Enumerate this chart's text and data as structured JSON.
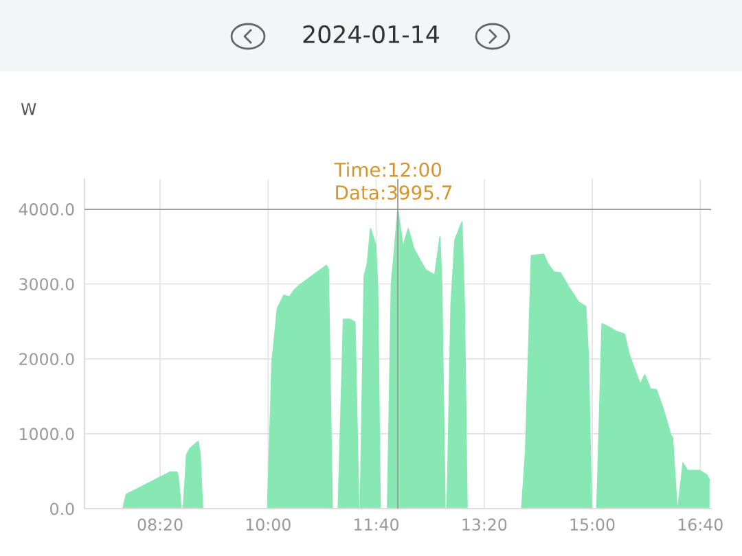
{
  "chart_data": {
    "type": "area",
    "title": "2024-01-14",
    "ylabel": "W",
    "annotations": [
      {
        "text": "Time:12:00\nData:3995.7",
        "x": 12.0,
        "y": 3995.7
      }
    ],
    "ref_lines": [
      {
        "axis": "x",
        "value": 12.0,
        "color": "#999999"
      },
      {
        "axis": "y",
        "value": 3995.7,
        "color": "#999999"
      }
    ],
    "series": [
      {
        "color": "#88e8b4",
        "x": [
          7.17,
          7.76,
          7.81,
          8.49,
          8.59,
          8.61,
          8.66,
          8.69,
          8.74,
          8.8,
          8.92,
          8.95,
          8.99,
          9.99,
          10.06,
          10.08,
          10.14,
          10.24,
          10.33,
          10.4,
          10.49,
          10.66,
          10.9,
          10.93,
          10.99,
          11.08,
          11.16,
          11.26,
          11.34,
          11.4,
          11.42,
          11.48,
          11.53,
          11.58,
          11.66,
          11.69,
          11.73,
          11.84,
          11.9,
          11.93,
          12.0,
          12.08,
          12.16,
          12.25,
          12.35,
          12.43,
          12.57,
          12.65,
          12.68,
          12.73,
          12.76,
          12.82,
          12.88,
          12.99,
          13.03,
          13.07,
          13.91,
          13.97,
          14.06,
          14.25,
          14.31,
          14.41,
          14.51,
          14.63,
          14.7,
          14.79,
          14.9,
          14.94,
          14.99,
          15.07,
          15.15,
          15.25,
          15.37,
          15.5,
          15.57,
          15.74,
          15.81,
          15.9,
          15.99,
          16.1,
          16.21,
          16.24,
          16.31,
          16.32,
          16.4,
          16.47,
          16.66,
          16.77,
          16.81
        ],
        "values": [
          0,
          0,
          190,
          490,
          490,
          440,
          0,
          0,
          720,
          810,
          900,
          740,
          0,
          0,
          2000,
          2140,
          2670,
          2850,
          2830,
          2920,
          2990,
          3100,
          3250,
          3190,
          0,
          0,
          2530,
          2530,
          2490,
          0,
          0,
          3100,
          3280,
          3740,
          3520,
          2970,
          0,
          0,
          3010,
          3280,
          3995.7,
          3500,
          3740,
          3470,
          3310,
          3190,
          3120,
          3630,
          2970,
          0,
          0,
          2730,
          3590,
          3830,
          2670,
          0,
          0,
          770,
          3380,
          3400,
          3280,
          3160,
          3150,
          2970,
          2880,
          2760,
          2700,
          2060,
          0,
          0,
          2470,
          2430,
          2370,
          2330,
          2060,
          1660,
          1790,
          1600,
          1590,
          1320,
          990,
          950,
          0,
          0,
          610,
          510,
          510,
          450,
          380
        ]
      }
    ],
    "xlim": [
      7.1667,
      16.8333
    ],
    "xticks": [
      {
        "value": 8.3333,
        "label": "08:20"
      },
      {
        "value": 10.0,
        "label": "10:00"
      },
      {
        "value": 11.6667,
        "label": "11:40"
      },
      {
        "value": 13.3333,
        "label": "13:20"
      },
      {
        "value": 15.0,
        "label": "15:00"
      },
      {
        "value": 16.6667,
        "label": "16:40"
      }
    ],
    "ylim": [
      0,
      4400
    ],
    "yticks": [
      {
        "value": 0,
        "label": "0.0"
      },
      {
        "value": 1000,
        "label": "1000.0"
      },
      {
        "value": 2000,
        "label": "2000.0"
      },
      {
        "value": 3000,
        "label": "3000.0"
      },
      {
        "value": 4000,
        "label": "4000.0"
      }
    ],
    "grid": true
  }
}
